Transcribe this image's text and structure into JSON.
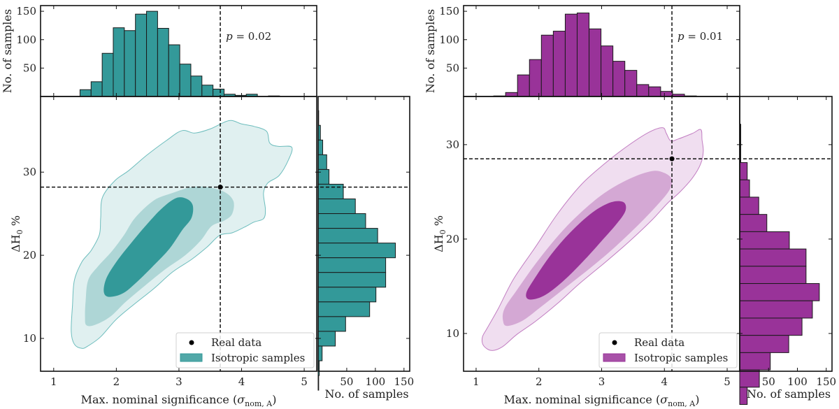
{
  "chart_data": [
    {
      "type": "scatter",
      "panel": "left",
      "subtype": "joint-kde-with-marginal-histograms",
      "color": "#339999",
      "contour_fills": [
        "#e0f0f0",
        "#aed6d6",
        "#339999"
      ],
      "contour_edge": "#6dbdbd",
      "xlabel": "Max. nominal significance (σ_nom, A)",
      "xlabel_main": "Max. nominal significance (",
      "xlabel_sigma": "σ",
      "xlabel_sub": "nom, A",
      "xlabel_close": ")",
      "ylabel": "ΔH0 %",
      "ylabel_delta": "ΔH",
      "ylabel_sub": "0",
      "ylabel_pct": " %",
      "xlim": [
        0.79,
        5.2
      ],
      "ylim": [
        6.05,
        39.1
      ],
      "xticks": [
        1,
        2,
        3,
        4,
        5
      ],
      "yticks": [
        10,
        20,
        30
      ],
      "real_data": {
        "x": 3.66,
        "y": 28.2
      },
      "p_value_label": "p = 0.02",
      "p_symbol": "p",
      "p_text": " = 0.02",
      "legend": {
        "position": "lower-right",
        "entries": [
          {
            "label": "Real data",
            "marker": "dot"
          },
          {
            "label": "Isotropic samples",
            "marker": "patch"
          }
        ]
      },
      "contours": {
        "outer": [
          [
            1.45,
            8.8
          ],
          [
            1.33,
            9.3
          ],
          [
            1.28,
            10.8
          ],
          [
            1.3,
            14
          ],
          [
            1.33,
            17
          ],
          [
            1.45,
            19.2
          ],
          [
            1.6,
            20.6
          ],
          [
            1.73,
            22.5
          ],
          [
            1.75,
            24.5
          ],
          [
            1.78,
            27
          ],
          [
            1.98,
            29
          ],
          [
            2.2,
            30.2
          ],
          [
            2.48,
            32
          ],
          [
            2.8,
            33.8
          ],
          [
            3.05,
            35
          ],
          [
            3.25,
            34.7
          ],
          [
            3.5,
            35.2
          ],
          [
            3.8,
            36.2
          ],
          [
            4.0,
            35.8
          ],
          [
            4.2,
            35.5
          ],
          [
            4.4,
            34.9
          ],
          [
            4.45,
            33.5
          ],
          [
            4.58,
            33.1
          ],
          [
            4.8,
            33
          ],
          [
            4.75,
            31.5
          ],
          [
            4.6,
            29.6
          ],
          [
            4.42,
            28.7
          ],
          [
            4.35,
            27.5
          ],
          [
            4.38,
            25.5
          ],
          [
            4.35,
            24.4
          ],
          [
            4.2,
            24
          ],
          [
            4.05,
            23.4
          ],
          [
            3.85,
            22.7
          ],
          [
            3.65,
            22.4
          ],
          [
            3.45,
            21
          ],
          [
            3.2,
            19.5
          ],
          [
            2.9,
            18
          ],
          [
            2.6,
            16
          ],
          [
            2.3,
            14.2
          ],
          [
            2.0,
            12.3
          ],
          [
            1.75,
            10.2
          ],
          [
            1.55,
            9.1
          ]
        ],
        "middle": [
          [
            1.52,
            11.6
          ],
          [
            1.5,
            12.6
          ],
          [
            1.51,
            14.5
          ],
          [
            1.55,
            17
          ],
          [
            1.7,
            18.6
          ],
          [
            1.93,
            20.5
          ],
          [
            2.12,
            22.4
          ],
          [
            2.3,
            24.5
          ],
          [
            2.6,
            26.6
          ],
          [
            2.9,
            27.5
          ],
          [
            3.2,
            28.2
          ],
          [
            3.45,
            28.2
          ],
          [
            3.73,
            27.6
          ],
          [
            3.87,
            26.5
          ],
          [
            3.85,
            25
          ],
          [
            3.73,
            24.2
          ],
          [
            3.52,
            23.5
          ],
          [
            3.35,
            21.8
          ],
          [
            3.1,
            20
          ],
          [
            2.78,
            18.3
          ],
          [
            2.45,
            16.3
          ],
          [
            2.15,
            14.4
          ],
          [
            1.9,
            12.6
          ],
          [
            1.65,
            11.6
          ]
        ],
        "inner": [
          [
            1.88,
            15.0
          ],
          [
            1.8,
            15.6
          ],
          [
            1.84,
            17.2
          ],
          [
            2.0,
            19.2
          ],
          [
            2.25,
            21.6
          ],
          [
            2.52,
            24.0
          ],
          [
            2.75,
            25.8
          ],
          [
            2.96,
            26.9
          ],
          [
            3.12,
            26.8
          ],
          [
            3.22,
            26.0
          ],
          [
            3.2,
            24.5
          ],
          [
            3.05,
            23.0
          ],
          [
            2.85,
            20.8
          ],
          [
            2.6,
            18.8
          ],
          [
            2.33,
            16.8
          ],
          [
            2.1,
            15.4
          ]
        ]
      },
      "top_histogram": {
        "ylabel": "No. of samples",
        "yticks": [
          50,
          100,
          150
        ],
        "ylim": [
          0,
          160
        ],
        "bin_start": 1.42,
        "bin_width": 0.177,
        "counts": [
          12,
          26,
          76,
          121,
          116,
          145,
          150,
          120,
          91,
          57,
          36,
          20,
          13,
          4,
          2,
          4,
          0,
          1
        ]
      },
      "right_histogram": {
        "xlabel": "No. of samples",
        "xticks": [
          50,
          100,
          150
        ],
        "xlim": [
          0,
          160
        ],
        "bin_top": 37.4,
        "bin_width": 1.77,
        "counts_top_to_bottom": [
          1,
          4,
          8,
          15,
          19,
          44,
          65,
          83,
          104,
          135,
          118,
          118,
          101,
          90,
          48,
          30,
          7,
          2,
          1
        ]
      }
    },
    {
      "type": "scatter",
      "panel": "right",
      "subtype": "joint-kde-with-marginal-histograms",
      "color": "#993399",
      "contour_fills": [
        "#f0def0",
        "#d4a8d4",
        "#993399"
      ],
      "contour_edge": "#c27ec2",
      "xlabel": "Max. nominal significance (σ_nom, A)",
      "xlabel_main": "Max. nominal significance (",
      "xlabel_sigma": "σ",
      "xlabel_sub": "nom, A",
      "xlabel_close": ")",
      "ylabel": "ΔH0 %",
      "ylabel_delta": "ΔH",
      "ylabel_sub": "0",
      "ylabel_pct": " %",
      "xlim": [
        0.8,
        5.2
      ],
      "ylim": [
        6.0,
        35.1
      ],
      "xticks": [
        1,
        2,
        3,
        4,
        5
      ],
      "yticks": [
        10,
        20,
        30
      ],
      "real_data": {
        "x": 4.12,
        "y": 28.5
      },
      "p_value_label": "p = 0.01",
      "p_symbol": "p",
      "p_text": " = 0.01",
      "legend": {
        "position": "lower-right",
        "entries": [
          {
            "label": "Real data",
            "marker": "dot"
          },
          {
            "label": "Isotropic samples",
            "marker": "patch"
          }
        ]
      },
      "contours": {
        "outer": [
          [
            1.25,
            8.2
          ],
          [
            1.12,
            8.7
          ],
          [
            1.1,
            9.6
          ],
          [
            1.18,
            10.6
          ],
          [
            1.35,
            12.6
          ],
          [
            1.6,
            15.8
          ],
          [
            1.95,
            19.2
          ],
          [
            2.3,
            22.7
          ],
          [
            2.68,
            25.8
          ],
          [
            3.05,
            28.0
          ],
          [
            3.4,
            29.8
          ],
          [
            3.75,
            31.3
          ],
          [
            3.97,
            31.8
          ],
          [
            4.03,
            31.2
          ],
          [
            4.1,
            30.4
          ],
          [
            4.22,
            30.6
          ],
          [
            4.45,
            31.2
          ],
          [
            4.58,
            31.6
          ],
          [
            4.6,
            30.5
          ],
          [
            4.62,
            29.3
          ],
          [
            4.58,
            28.0
          ],
          [
            4.45,
            26.5
          ],
          [
            4.25,
            25.0
          ],
          [
            4.05,
            23.8
          ],
          [
            3.8,
            22.0
          ],
          [
            3.45,
            19.8
          ],
          [
            3.05,
            17.5
          ],
          [
            2.65,
            15.3
          ],
          [
            2.3,
            13.2
          ],
          [
            1.95,
            11.3
          ],
          [
            1.65,
            9.9
          ],
          [
            1.42,
            8.6
          ]
        ],
        "middle": [
          [
            1.5,
            10.8
          ],
          [
            1.43,
            11.3
          ],
          [
            1.45,
            12.6
          ],
          [
            1.65,
            14.6
          ],
          [
            1.95,
            17.4
          ],
          [
            2.3,
            20.3
          ],
          [
            2.65,
            22.7
          ],
          [
            3.05,
            24.9
          ],
          [
            3.45,
            26.4
          ],
          [
            3.8,
            27.2
          ],
          [
            4.0,
            27.0
          ],
          [
            4.12,
            26.3
          ],
          [
            4.08,
            25.2
          ],
          [
            3.9,
            23.7
          ],
          [
            3.6,
            21.6
          ],
          [
            3.22,
            19.2
          ],
          [
            2.85,
            17.1
          ],
          [
            2.45,
            15.0
          ],
          [
            2.05,
            12.9
          ],
          [
            1.75,
            11.4
          ]
        ],
        "inner": [
          [
            1.85,
            13.6
          ],
          [
            1.8,
            14.3
          ],
          [
            1.95,
            16.0
          ],
          [
            2.2,
            18.4
          ],
          [
            2.5,
            20.7
          ],
          [
            2.85,
            22.8
          ],
          [
            3.15,
            23.9
          ],
          [
            3.35,
            23.9
          ],
          [
            3.38,
            23.0
          ],
          [
            3.25,
            21.7
          ],
          [
            3.0,
            19.8
          ],
          [
            2.7,
            17.6
          ],
          [
            2.38,
            15.5
          ],
          [
            2.08,
            14.0
          ]
        ]
      },
      "top_histogram": {
        "ylabel": "No. of samples",
        "yticks": [
          50,
          100,
          150
        ],
        "ylim": [
          0,
          160
        ],
        "bin_start": 1.28,
        "bin_width": 0.19,
        "counts": [
          1,
          7,
          38,
          65,
          108,
          115,
          145,
          147,
          119,
          89,
          62,
          46,
          21,
          17,
          9,
          4,
          1
        ]
      },
      "right_histogram": {
        "xlabel": "No. of samples",
        "xticks": [
          50,
          100,
          150
        ],
        "xlim": [
          0,
          160
        ],
        "bin_top": 28.1,
        "bin_width": 1.83,
        "stem_range": [
          28.1,
          32.2
        ],
        "stem_count": 1,
        "counts_top_to_bottom": [
          13,
          17,
          33,
          47,
          86,
          115,
          115,
          138,
          126,
          108,
          85,
          53,
          34,
          13
        ]
      }
    }
  ]
}
